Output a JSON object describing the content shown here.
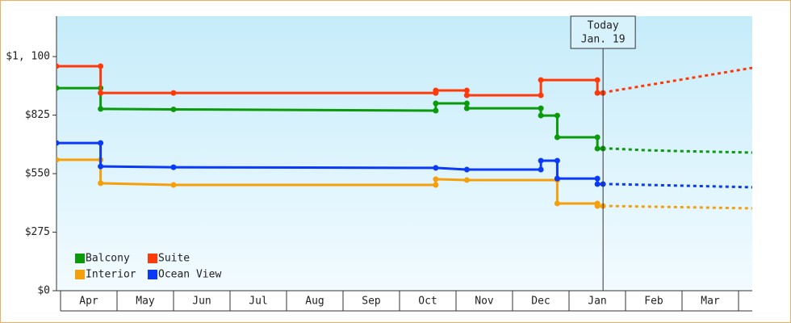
{
  "chart_data": {
    "type": "step-line",
    "categories": [
      "Apr",
      "May",
      "Jun",
      "Jul",
      "Aug",
      "Sep",
      "Oct",
      "Nov",
      "Dec",
      "Jan",
      "Feb",
      "Mar"
    ],
    "xlim": [
      -0.07,
      12.24
    ],
    "ylim": [
      0,
      1290
    ],
    "yticks": [
      {
        "value": 0,
        "label": "$0"
      },
      {
        "value": 275,
        "label": "$275"
      },
      {
        "value": 550,
        "label": "$550"
      },
      {
        "value": 825,
        "label": "$825"
      },
      {
        "value": 1100,
        "label": "$1, 100"
      }
    ],
    "today": {
      "x": 9.6,
      "label": [
        "Today",
        "Jan. 19"
      ]
    },
    "series": [
      {
        "name": "Balcony",
        "color": "#0a9a0a",
        "x": [
          -0.07,
          0.71,
          0.71,
          2.0,
          6.64,
          6.64,
          7.19,
          7.19,
          8.5,
          8.5,
          8.79,
          8.79,
          9.5,
          9.5,
          9.6
        ],
        "values": [
          952,
          952,
          854,
          852,
          846,
          880,
          880,
          857,
          857,
          823,
          823,
          721,
          721,
          668,
          668
        ],
        "forecast_x": [
          9.71,
          10.36,
          10.93,
          12.24
        ],
        "forecast_values": [
          668,
          660,
          656,
          649
        ]
      },
      {
        "name": "Suite",
        "color": "#ff3a0a",
        "x": [
          -0.07,
          0.71,
          0.71,
          2.0,
          6.64,
          6.64,
          7.19,
          7.19,
          8.5,
          8.5,
          9.5,
          9.5,
          9.6
        ],
        "values": [
          1055,
          1055,
          929,
          929,
          929,
          941,
          941,
          918,
          918,
          990,
          990,
          929,
          929
        ],
        "forecast_x": [
          9.71,
          12.24
        ],
        "forecast_values": [
          936,
          1047
        ]
      },
      {
        "name": "Interior",
        "color": "#f5a00a",
        "x": [
          -0.07,
          0.71,
          0.71,
          2.0,
          6.64,
          6.64,
          7.19,
          8.79,
          8.79,
          9.5,
          9.5,
          9.6
        ],
        "values": [
          615,
          615,
          505,
          497,
          497,
          524,
          520,
          520,
          410,
          410,
          398,
          398
        ],
        "forecast_x": [
          9.71,
          12.24
        ],
        "forecast_values": [
          398,
          387
        ]
      },
      {
        "name": "Ocean View",
        "color": "#0a3af5",
        "x": [
          -0.07,
          0.71,
          0.71,
          2.0,
          6.64,
          7.19,
          8.5,
          8.5,
          8.79,
          8.79,
          9.5,
          9.5,
          9.6
        ],
        "values": [
          694,
          694,
          584,
          580,
          577,
          569,
          569,
          611,
          611,
          527,
          527,
          501,
          501
        ],
        "forecast_x": [
          9.71,
          12.24
        ],
        "forecast_values": [
          501,
          486
        ]
      }
    ]
  }
}
